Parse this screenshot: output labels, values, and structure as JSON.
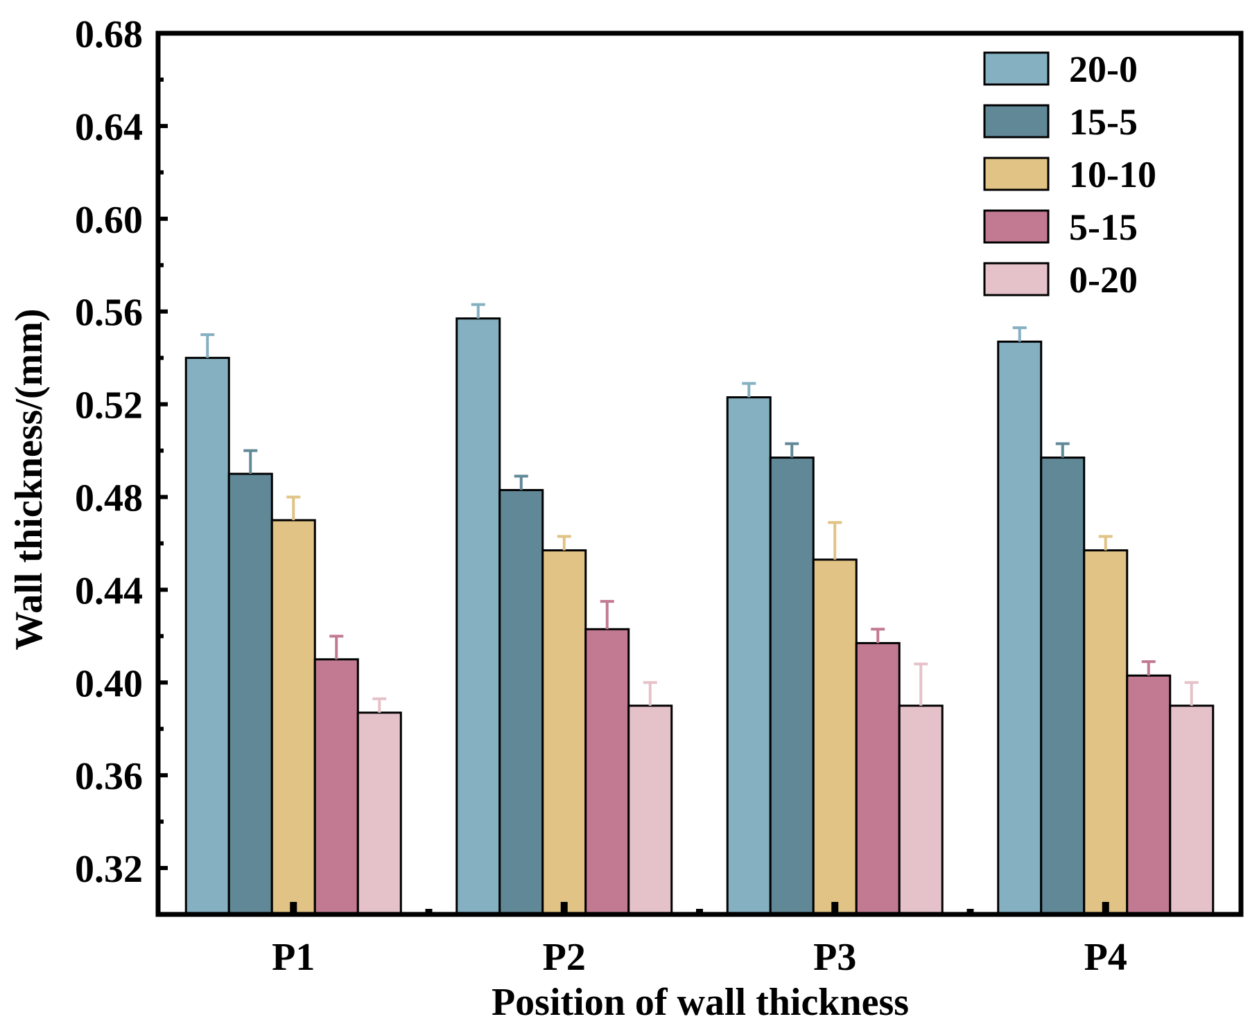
{
  "chart_data": {
    "type": "bar",
    "title": "",
    "xlabel": "Position of wall thickness",
    "ylabel": "Wall thickness/(mm)",
    "ylim": [
      0.3,
      0.68
    ],
    "yticks": [
      "0.32",
      "0.36",
      "0.40",
      "0.44",
      "0.48",
      "0.52",
      "0.56",
      "0.60",
      "0.64",
      "0.68"
    ],
    "ytick_values": [
      0.32,
      0.36,
      0.4,
      0.44,
      0.48,
      0.52,
      0.56,
      0.6,
      0.64,
      0.68
    ],
    "categories": [
      "P1",
      "P2",
      "P3",
      "P4"
    ],
    "legend_position": "top-right",
    "series": [
      {
        "name": "20-0",
        "color": "#84B0C1",
        "values": [
          0.54,
          0.557,
          0.523,
          0.547
        ],
        "errors": [
          0.01,
          0.006,
          0.006,
          0.006
        ]
      },
      {
        "name": "15-5",
        "color": "#618897",
        "values": [
          0.49,
          0.483,
          0.497,
          0.497
        ],
        "errors": [
          0.01,
          0.006,
          0.006,
          0.006
        ]
      },
      {
        "name": "10-10",
        "color": "#E1C385",
        "values": [
          0.47,
          0.457,
          0.453,
          0.457
        ],
        "errors": [
          0.01,
          0.006,
          0.016,
          0.006
        ]
      },
      {
        "name": "5-15",
        "color": "#C27A92",
        "values": [
          0.41,
          0.423,
          0.417,
          0.403
        ],
        "errors": [
          0.01,
          0.012,
          0.006,
          0.006
        ]
      },
      {
        "name": "0-20",
        "color": "#E5C2C9",
        "values": [
          0.387,
          0.39,
          0.39,
          0.39
        ],
        "errors": [
          0.006,
          0.01,
          0.018,
          0.01
        ]
      }
    ]
  }
}
